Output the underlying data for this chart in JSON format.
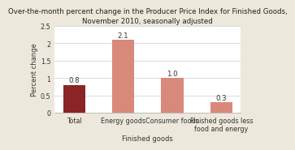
{
  "title": "Over-the-month percent change in the Producer Price Index for Finished Goods,\nNovember 2010, seasonally adjusted",
  "categories": [
    "Total",
    "Energy goods",
    "Consumer foods",
    "Finished goods less\nfood and energy"
  ],
  "values": [
    0.8,
    2.1,
    1.0,
    0.3
  ],
  "bar_colors": [
    "#8B2525",
    "#D9897A",
    "#D9897A",
    "#D9897A"
  ],
  "xlabel": "Finished goods",
  "ylabel": "Percent change",
  "ylim": [
    0,
    2.5
  ],
  "yticks": [
    0,
    0.5,
    1.0,
    1.5,
    2.0,
    2.5
  ],
  "title_fontsize": 6.2,
  "label_fontsize": 6.0,
  "tick_fontsize": 5.8,
  "value_fontsize": 6.2,
  "background_color": "#EDE8DC",
  "plot_bg_color": "#FFFFFF",
  "bar_width": 0.45
}
